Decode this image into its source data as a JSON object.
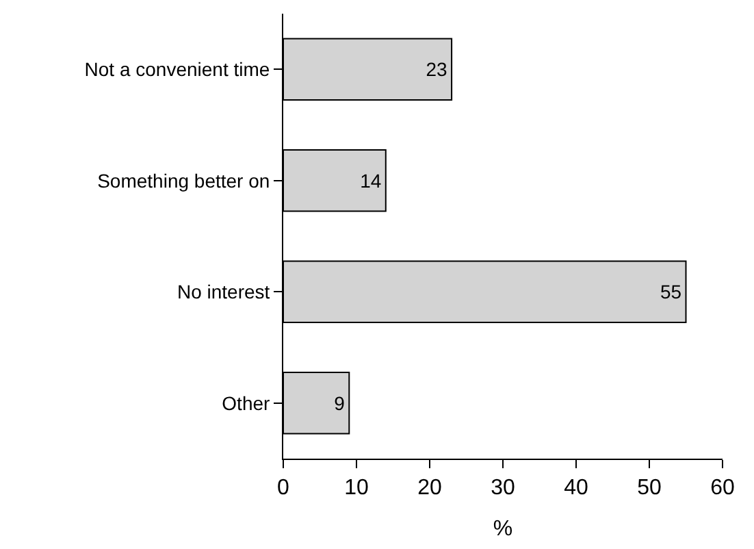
{
  "chart_data": {
    "type": "bar",
    "orientation": "horizontal",
    "xlabel": "%",
    "categories": [
      "Not a convenient time",
      "Something better on",
      "No interest",
      "Other"
    ],
    "values": [
      23,
      14,
      55,
      9
    ],
    "color": "#d3d3d3",
    "data_labels": true,
    "xlim": [
      0,
      60
    ],
    "xticks": [
      0,
      10,
      20,
      30,
      40,
      50,
      60
    ]
  }
}
